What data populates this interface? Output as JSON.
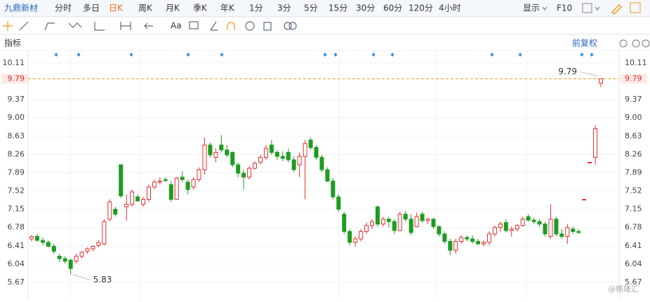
{
  "toolbar": {
    "stock": "九鼎新材",
    "tabs": [
      "分时",
      "多日",
      "日K",
      "周K",
      "月K",
      "季K",
      "年K",
      "1分",
      "3分",
      "5分",
      "15分",
      "30分",
      "60分",
      "120分",
      "4小时"
    ],
    "active": "日K",
    "display": "显示",
    "f10": "F10",
    "text_tool": "Aa"
  },
  "panel": {
    "indicator": "指标",
    "adjust": "前复权"
  },
  "watermark": "@格隆汇",
  "chart_data": {
    "type": "candlestick",
    "ylim": [
      5.5,
      10.25
    ],
    "yticks": [
      10.11,
      9.79,
      9.37,
      {
        "value": 9.0,
        "label": "9.00"
      },
      8.63,
      8.26,
      7.89,
      7.52,
      7.15,
      6.78,
      6.41,
      6.04,
      5.67
    ],
    "grid": true,
    "up_color": "#e0302f",
    "down_color": "#1e9c22",
    "last_price": 9.79,
    "max_label": 9.79,
    "min_label": 5.83,
    "open": [
      6.55,
      6.6,
      6.52,
      6.48,
      6.4,
      6.2,
      6.15,
      6.12,
      6.1,
      6.2,
      6.3,
      6.35,
      6.42,
      6.45,
      6.95,
      7.15,
      8.05,
      7.2,
      7.25,
      7.4,
      7.25,
      7.35,
      7.6,
      7.7,
      7.75,
      7.65,
      7.35,
      7.8,
      7.7,
      7.6,
      7.75,
      7.95,
      8.45,
      8.2,
      8.45,
      8.35,
      8.3,
      8.05,
      7.88,
      7.8,
      7.98,
      8.1,
      8.2,
      8.45,
      8.3,
      8.22,
      8.3,
      8.15,
      8.05,
      8.22,
      8.55,
      8.4,
      8.2,
      7.95,
      7.72,
      7.4,
      7.05,
      6.7,
      6.48,
      6.55,
      6.7,
      6.82,
      7.2,
      6.85,
      6.95,
      6.9,
      6.72,
      7.05,
      6.95,
      6.8,
      7.05,
      6.92,
      6.95,
      6.8,
      6.65,
      6.5,
      6.32,
      6.5,
      6.58,
      6.55,
      6.5,
      6.45,
      6.48,
      6.65,
      6.78,
      6.88,
      6.72,
      6.75,
      6.82,
      7.0,
      6.93,
      6.9,
      6.85,
      6.6,
      6.95,
      6.65,
      6.6,
      6.75,
      6.7,
      7.35,
      8.1,
      8.2,
      9.7
    ],
    "high": [
      6.62,
      6.65,
      6.58,
      6.52,
      6.45,
      6.25,
      6.2,
      6.15,
      6.25,
      6.3,
      6.38,
      6.42,
      6.52,
      6.95,
      7.35,
      7.2,
      8.05,
      7.45,
      7.55,
      7.45,
      7.4,
      7.65,
      7.75,
      7.8,
      7.8,
      7.72,
      7.8,
      7.92,
      7.75,
      7.8,
      8.0,
      8.6,
      8.5,
      8.38,
      8.65,
      8.45,
      8.32,
      8.1,
      7.95,
      8.02,
      8.12,
      8.25,
      8.45,
      8.55,
      8.35,
      8.32,
      8.38,
      8.22,
      8.3,
      8.55,
      8.6,
      8.45,
      8.25,
      8.0,
      7.78,
      7.45,
      7.1,
      6.75,
      6.6,
      6.75,
      6.88,
      6.95,
      7.22,
      7.0,
      7.0,
      6.95,
      7.1,
      7.12,
      7.05,
      7.08,
      7.1,
      6.98,
      6.98,
      6.82,
      6.7,
      6.55,
      6.55,
      6.62,
      6.62,
      6.62,
      6.55,
      6.52,
      6.7,
      6.82,
      6.9,
      6.95,
      6.8,
      6.85,
      7.0,
      7.05,
      6.98,
      6.95,
      6.9,
      7.25,
      7.0,
      6.75,
      6.85,
      6.8,
      6.75,
      7.35,
      8.1,
      8.85,
      9.79
    ],
    "low": [
      6.5,
      6.5,
      6.42,
      6.38,
      6.25,
      6.08,
      6.05,
      5.83,
      6.05,
      6.15,
      6.25,
      6.3,
      6.38,
      6.42,
      6.9,
      7.0,
      7.38,
      6.92,
      7.2,
      7.3,
      7.2,
      7.3,
      7.55,
      7.65,
      7.7,
      7.3,
      7.35,
      7.7,
      7.45,
      7.55,
      7.7,
      7.85,
      8.2,
      8.1,
      8.3,
      8.2,
      8.0,
      7.8,
      7.55,
      7.75,
      7.95,
      8.05,
      8.15,
      8.25,
      8.15,
      8.12,
      8.1,
      7.9,
      7.8,
      7.35,
      8.35,
      8.15,
      7.9,
      7.7,
      7.35,
      7.1,
      6.65,
      6.42,
      6.4,
      6.5,
      6.65,
      6.75,
      6.8,
      6.8,
      6.78,
      6.65,
      6.7,
      6.9,
      6.62,
      6.78,
      6.88,
      6.85,
      6.75,
      6.6,
      6.45,
      6.22,
      6.25,
      6.45,
      6.5,
      6.45,
      6.42,
      6.4,
      6.42,
      6.6,
      6.7,
      6.68,
      6.6,
      6.7,
      6.8,
      6.9,
      6.85,
      6.8,
      6.6,
      6.55,
      6.6,
      6.55,
      6.45,
      6.65,
      6.65,
      7.35,
      8.1,
      8.05,
      9.62
    ],
    "close": [
      6.6,
      6.52,
      6.48,
      6.4,
      6.3,
      6.15,
      6.1,
      5.95,
      6.2,
      6.28,
      6.35,
      6.4,
      6.48,
      6.9,
      7.3,
      7.05,
      7.42,
      7.25,
      7.5,
      7.32,
      7.35,
      7.6,
      7.7,
      7.72,
      7.73,
      7.35,
      7.78,
      7.75,
      7.55,
      7.75,
      7.95,
      8.45,
      8.25,
      8.3,
      8.35,
      8.25,
      8.05,
      7.88,
      7.8,
      7.98,
      8.08,
      8.2,
      8.38,
      8.3,
      8.22,
      8.18,
      8.15,
      7.95,
      8.22,
      8.48,
      8.4,
      8.2,
      7.95,
      7.72,
      7.4,
      7.15,
      6.7,
      6.48,
      6.55,
      6.7,
      6.82,
      6.9,
      6.85,
      6.95,
      6.9,
      6.72,
      7.05,
      6.95,
      6.68,
      7.0,
      6.92,
      6.95,
      6.8,
      6.65,
      6.5,
      6.32,
      6.5,
      6.58,
      6.55,
      6.5,
      6.45,
      6.48,
      6.65,
      6.78,
      6.85,
      6.72,
      6.75,
      6.82,
      6.95,
      6.93,
      6.9,
      6.85,
      6.65,
      6.95,
      6.65,
      6.6,
      6.78,
      6.7,
      6.68,
      7.35,
      8.1,
      8.78,
      9.79
    ]
  }
}
